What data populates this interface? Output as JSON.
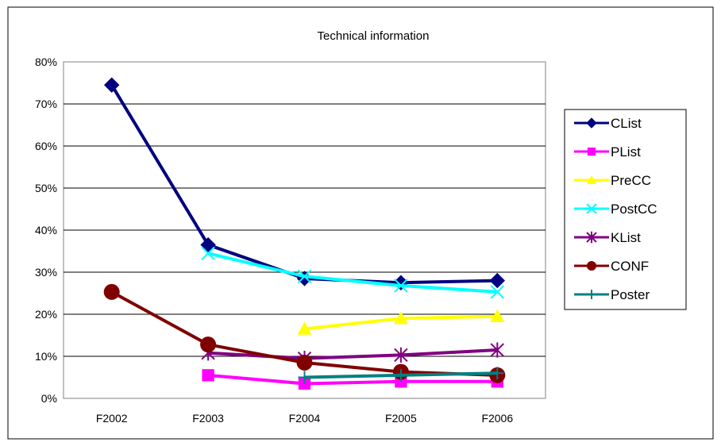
{
  "chart_data": {
    "type": "line",
    "title": "Technical information",
    "categories": [
      "F2002",
      "F2003",
      "F2004",
      "F2005",
      "F2006"
    ],
    "y_ticks": [
      "0%",
      "10%",
      "20%",
      "30%",
      "40%",
      "50%",
      "60%",
      "70%",
      "80%"
    ],
    "ylim": [
      0,
      80
    ],
    "grid": true,
    "legend_position": "right",
    "series": [
      {
        "name": "CList",
        "color": "#000080",
        "marker": "diamond",
        "values": [
          74.5,
          36.5,
          28.5,
          27.5,
          28.0
        ]
      },
      {
        "name": "PList",
        "color": "#FF00FF",
        "marker": "square",
        "values": [
          null,
          5.5,
          3.5,
          4.0,
          4.0
        ]
      },
      {
        "name": "PreCC",
        "color": "#FFFF00",
        "marker": "triangle",
        "values": [
          null,
          null,
          16.5,
          19.0,
          19.5
        ]
      },
      {
        "name": "PostCC",
        "color": "#00FFFF",
        "marker": "x",
        "values": [
          null,
          34.5,
          29.0,
          26.8,
          25.3
        ]
      },
      {
        "name": "KList",
        "color": "#800080",
        "marker": "asterisk",
        "values": [
          null,
          10.8,
          9.5,
          10.3,
          11.5
        ]
      },
      {
        "name": "CONF",
        "color": "#800000",
        "marker": "circle",
        "values": [
          25.3,
          12.8,
          8.5,
          6.3,
          5.5
        ]
      },
      {
        "name": "Poster",
        "color": "#008080",
        "marker": "plus",
        "values": [
          null,
          null,
          5.0,
          5.5,
          6.0
        ]
      }
    ]
  }
}
